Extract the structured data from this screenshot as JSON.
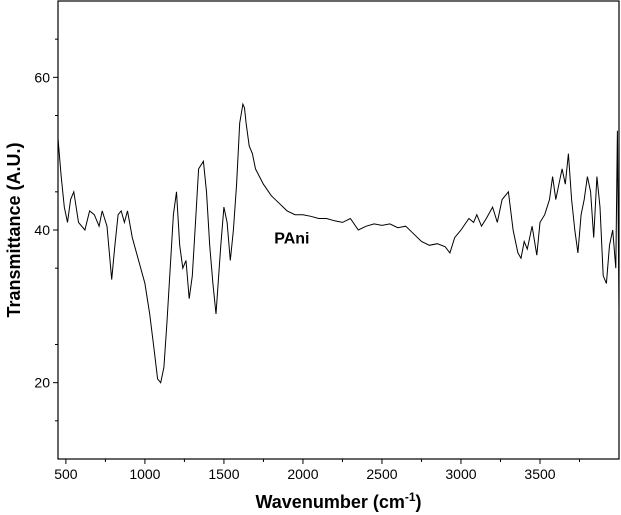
{
  "chart_data": {
    "type": "line",
    "xlabel": "Wavenumber (cm",
    "xlabel_sup": "-1",
    "xlabel_end": ")",
    "ylabel": "Transmittance (A.U.)",
    "xlim": [
      450,
      4000
    ],
    "ylim": [
      10,
      70
    ],
    "x_ticks": [
      500,
      1000,
      1500,
      2000,
      2500,
      3000,
      3500
    ],
    "x_tick_labels": [
      "500",
      "1000",
      "1500",
      "2000",
      "2500",
      "3000",
      "3500"
    ],
    "y_ticks": [
      20,
      40,
      60
    ],
    "y_tick_labels": [
      "20",
      "40",
      "60"
    ],
    "grid": false,
    "annotation": {
      "text": "PAni",
      "x": 1930,
      "y": 39
    },
    "series": [
      {
        "color": "#000000",
        "x": [
          450,
          470,
          490,
          510,
          530,
          550,
          580,
          620,
          650,
          680,
          710,
          730,
          760,
          790,
          810,
          830,
          850,
          870,
          890,
          920,
          960,
          1000,
          1030,
          1060,
          1080,
          1100,
          1120,
          1140,
          1160,
          1180,
          1200,
          1220,
          1240,
          1260,
          1280,
          1300,
          1320,
          1340,
          1370,
          1390,
          1410,
          1430,
          1450,
          1480,
          1500,
          1520,
          1540,
          1560,
          1580,
          1600,
          1620,
          1630,
          1640,
          1660,
          1680,
          1700,
          1750,
          1800,
          1850,
          1900,
          1950,
          2000,
          2050,
          2100,
          2150,
          2200,
          2250,
          2300,
          2350,
          2400,
          2450,
          2500,
          2550,
          2600,
          2650,
          2700,
          2750,
          2800,
          2850,
          2900,
          2930,
          2960,
          3000,
          3050,
          3080,
          3100,
          3130,
          3160,
          3200,
          3230,
          3260,
          3300,
          3330,
          3360,
          3380,
          3400,
          3420,
          3450,
          3480,
          3500,
          3530,
          3560,
          3580,
          3600,
          3620,
          3640,
          3660,
          3680,
          3700,
          3720,
          3740,
          3760,
          3780,
          3800,
          3820,
          3840,
          3860,
          3880,
          3900,
          3920,
          3940,
          3960,
          3980,
          3990,
          4000
        ],
        "y": [
          52,
          47,
          43,
          41,
          44,
          45,
          41,
          40,
          42.5,
          42,
          40.5,
          42.5,
          40.5,
          33.5,
          38,
          42,
          42.5,
          41,
          42.5,
          39,
          36,
          33,
          29,
          24,
          20.5,
          20,
          22,
          28,
          35,
          42,
          45,
          38,
          35,
          36,
          31,
          34,
          41,
          48,
          49,
          45,
          38,
          33,
          29,
          38,
          43,
          41,
          36,
          40,
          46,
          54,
          56.5,
          56,
          54,
          51,
          50,
          48,
          46,
          44.5,
          43.5,
          42.5,
          42,
          42,
          41.8,
          41.5,
          41.5,
          41.2,
          41,
          41.5,
          40,
          40.5,
          40.8,
          40.6,
          40.8,
          40.3,
          40.5,
          39.5,
          38.5,
          38,
          38.2,
          37.8,
          37,
          39,
          40,
          41.5,
          41,
          42,
          40.5,
          41.5,
          43,
          41,
          44,
          45,
          40,
          37,
          36.3,
          38.5,
          37.5,
          40.5,
          36.7,
          41,
          42,
          44,
          47,
          44,
          46,
          48,
          46,
          50,
          44,
          40,
          37,
          42,
          44,
          47,
          45,
          39,
          47,
          43,
          34,
          33,
          38,
          40,
          35,
          53,
          29.5
        ]
      }
    ]
  }
}
